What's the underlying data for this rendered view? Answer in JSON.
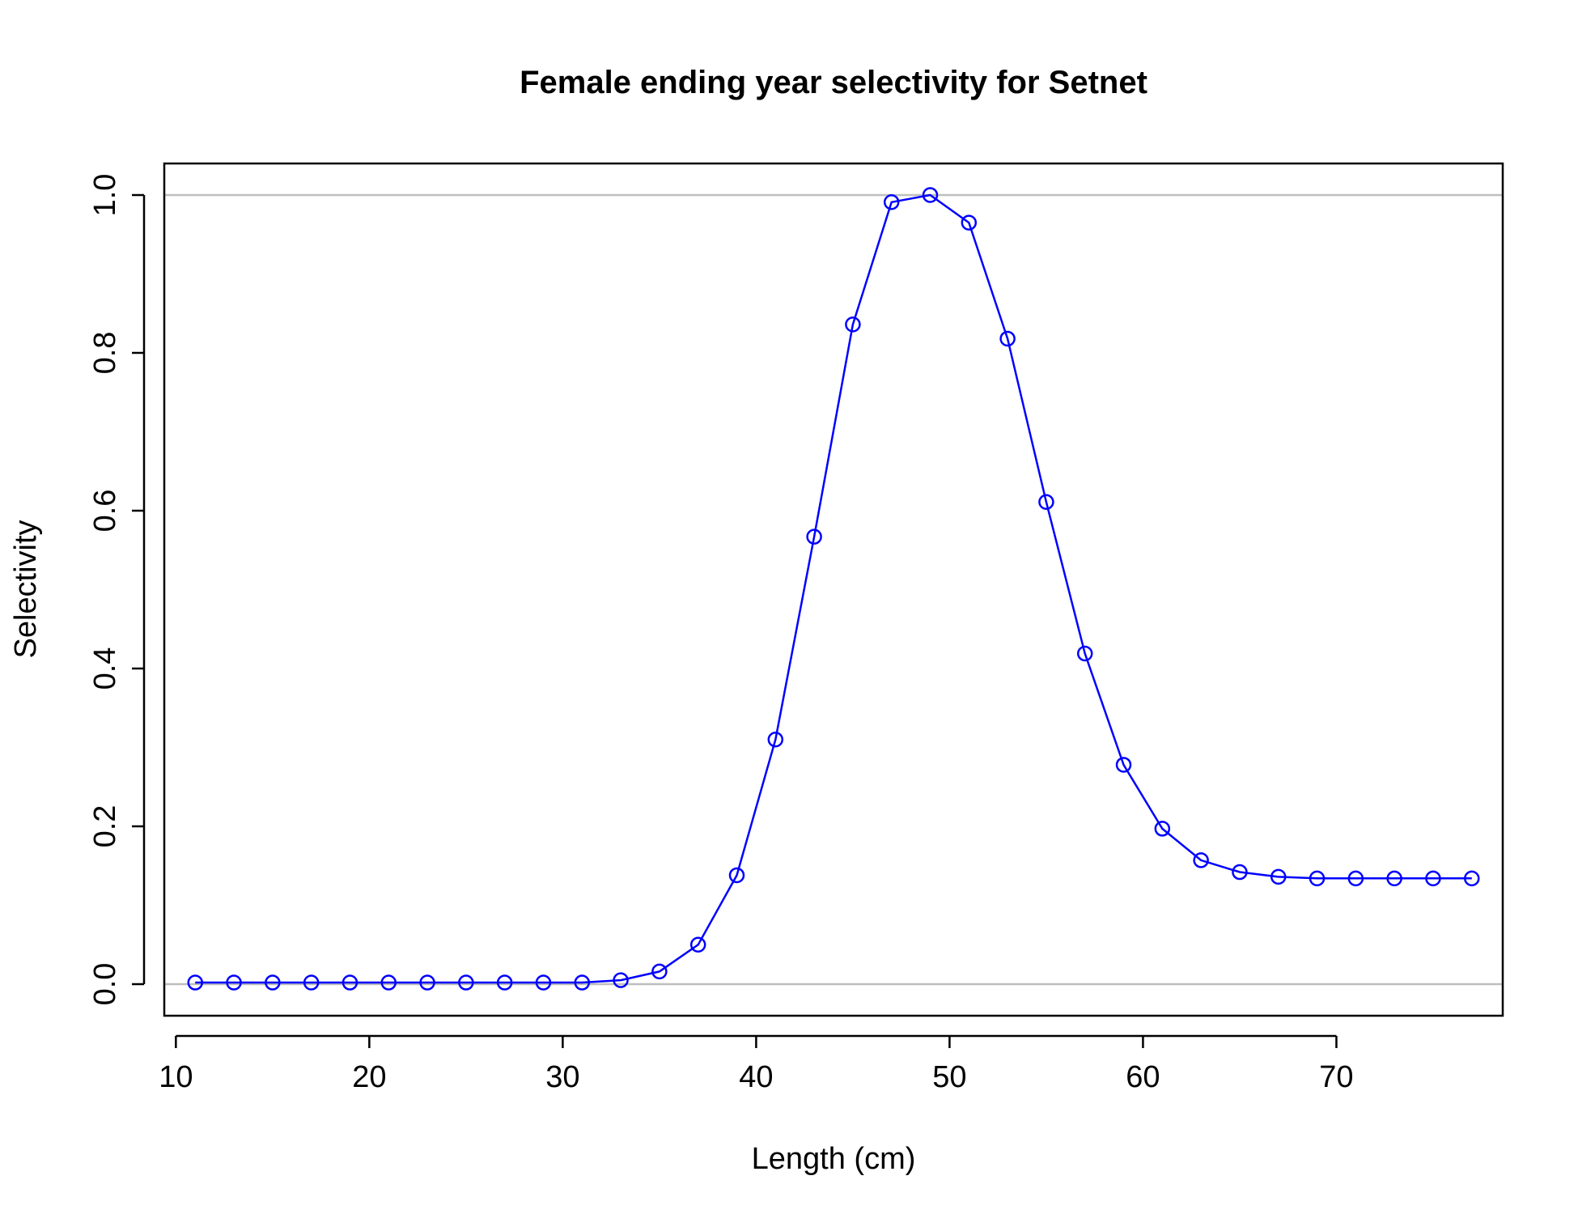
{
  "chart_data": {
    "type": "line",
    "title": "Female ending year selectivity for Setnet",
    "xlabel": "Length (cm)",
    "ylabel": "Selectivity",
    "xlim": [
      9.4,
      78.6
    ],
    "ylim": [
      -0.04,
      1.04
    ],
    "xticks": [
      "10",
      "20",
      "30",
      "40",
      "50",
      "60",
      "70"
    ],
    "yticks": [
      "0.0",
      "0.2",
      "0.4",
      "0.6",
      "0.8",
      "1.0"
    ],
    "reference_lines_y": [
      0,
      1
    ],
    "grid": false,
    "legend": "none",
    "markers": "open-circle",
    "colors": {
      "series": "#0000ff",
      "reference": "#bebebe",
      "axes": "#000000"
    },
    "series": [
      {
        "x": [
          11,
          13,
          15,
          17,
          19,
          21,
          23,
          25,
          27,
          29,
          31,
          33,
          35,
          37,
          39,
          41,
          43,
          45,
          47,
          49,
          51,
          53,
          55,
          57,
          59,
          61,
          63,
          65,
          67,
          69,
          71,
          73,
          75,
          77
        ],
        "values": [
          0.002,
          0.002,
          0.002,
          0.002,
          0.002,
          0.002,
          0.002,
          0.002,
          0.002,
          0.002,
          0.002,
          0.005,
          0.016,
          0.05,
          0.138,
          0.31,
          0.567,
          0.836,
          0.991,
          1.0,
          0.965,
          0.818,
          0.611,
          0.419,
          0.278,
          0.197,
          0.157,
          0.142,
          0.136,
          0.134,
          0.134,
          0.134,
          0.134,
          0.134
        ]
      }
    ]
  }
}
